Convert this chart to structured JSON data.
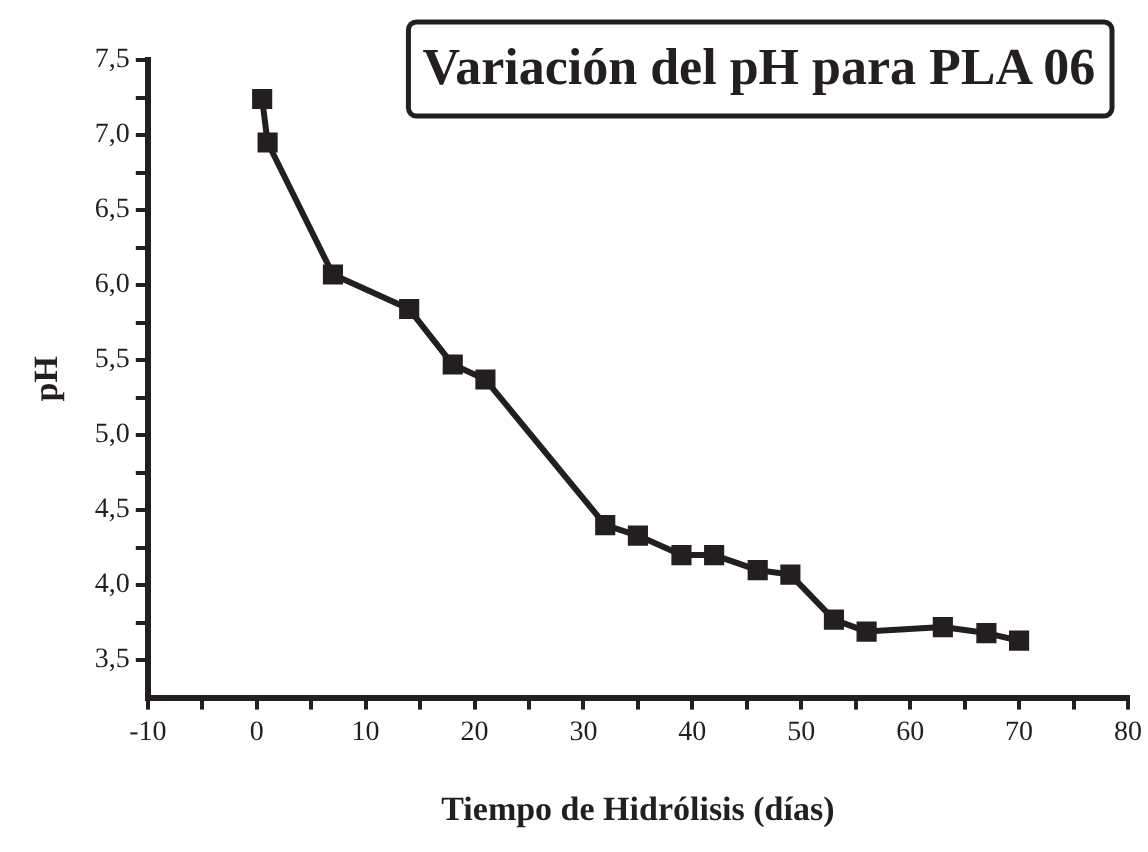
{
  "chart_data": {
    "type": "line",
    "title": "Variación del pH para PLA 06",
    "xlabel": "Tiempo de Hidrólisis (días)",
    "ylabel": "pH",
    "x": [
      0.5,
      1,
      7,
      14,
      18,
      21,
      32,
      35,
      39,
      42,
      46,
      49,
      53,
      56,
      63,
      67,
      70
    ],
    "series": [
      {
        "color": "#231f20",
        "values": [
          7.24,
          6.95,
          6.07,
          5.84,
          5.47,
          5.37,
          4.4,
          4.33,
          4.2,
          4.2,
          4.1,
          4.07,
          3.77,
          3.69,
          3.72,
          3.68,
          3.63
        ]
      }
    ],
    "xlim": [
      -10,
      80
    ],
    "xticks": [
      -10,
      {
        "value": -5,
        "label": null
      },
      0,
      {
        "value": 5,
        "label": null
      },
      10,
      {
        "value": 15,
        "label": null
      },
      20,
      {
        "value": 25,
        "label": null
      },
      30,
      {
        "value": 35,
        "label": null
      },
      40,
      {
        "value": 45,
        "label": null
      },
      50,
      {
        "value": 55,
        "label": null
      },
      60,
      {
        "value": 65,
        "label": null
      },
      70,
      {
        "value": 75,
        "label": null
      },
      80
    ],
    "ylim": [
      3.25,
      7.5
    ],
    "yticks": [
      {
        "value": 3.5,
        "label": "3,5"
      },
      {
        "value": 3.75,
        "label": null
      },
      {
        "value": 4,
        "label": "4,0"
      },
      {
        "value": 4.25,
        "label": null
      },
      {
        "value": 4.5,
        "label": "4,5"
      },
      {
        "value": 4.75,
        "label": null
      },
      {
        "value": 5,
        "label": "5,0"
      },
      {
        "value": 5.25,
        "label": null
      },
      {
        "value": 5.5,
        "label": "5,5"
      },
      {
        "value": 5.75,
        "label": null
      },
      {
        "value": 6,
        "label": "6,0"
      },
      {
        "value": 6.25,
        "label": null
      },
      {
        "value": 6.5,
        "label": "6,5"
      },
      {
        "value": 6.75,
        "label": null
      },
      {
        "value": 7,
        "label": "7,0"
      },
      {
        "value": 7.25,
        "label": null
      },
      {
        "value": 7.5,
        "label": "7,5"
      }
    ],
    "grid": false,
    "legend": false,
    "marker": "square",
    "line_style": "solid"
  }
}
